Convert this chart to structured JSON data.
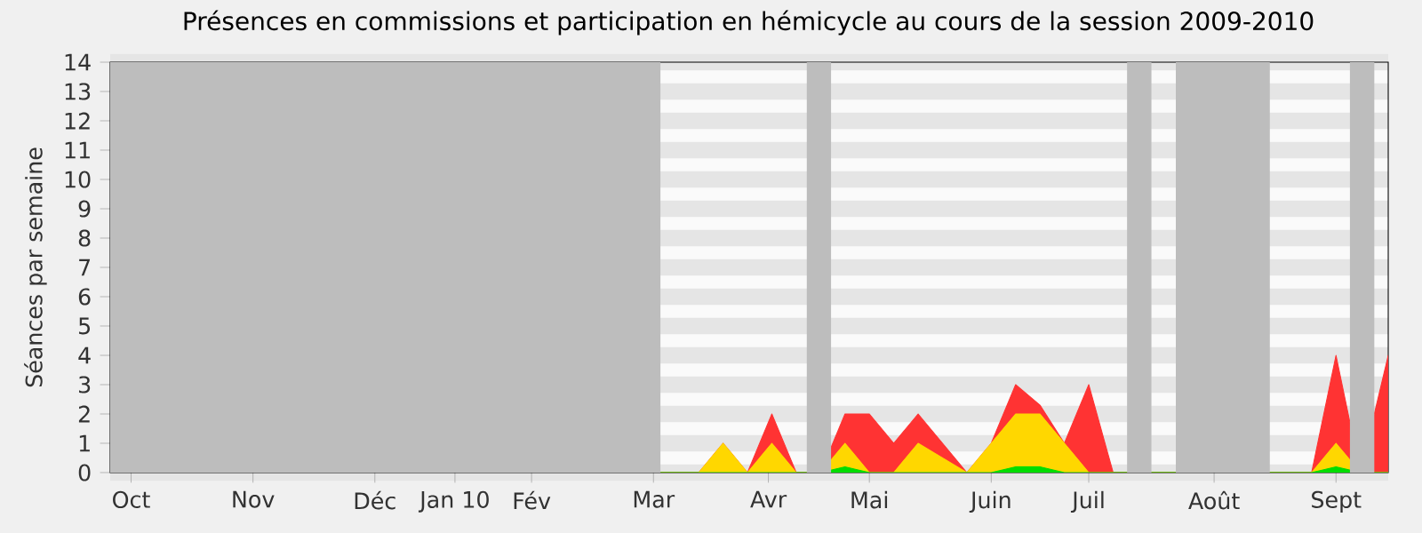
{
  "chart_data": {
    "type": "area",
    "stacked": true,
    "title": "Présences en commissions et participation en hémicycle au cours de la session 2009-2010",
    "ylabel": "Séances par semaine",
    "x": [
      "2009-09-28",
      "2010-03-15",
      "2010-03-22",
      "2010-03-29",
      "2010-04-05",
      "2010-04-12",
      "2010-04-19",
      "2010-04-26",
      "2010-05-03",
      "2010-05-10",
      "2010-05-17",
      "2010-05-24",
      "2010-05-31",
      "2010-06-07",
      "2010-06-14",
      "2010-06-21",
      "2010-06-28",
      "2010-07-05",
      "2010-07-12",
      "2010-09-07",
      "2010-09-14",
      "2010-09-21",
      "2010-09-29"
    ],
    "series": [
      {
        "color": "#00dd00",
        "values": [
          0,
          0,
          0,
          0,
          0,
          0,
          0,
          0.2,
          0,
          0,
          0,
          0,
          0,
          0,
          0.2,
          0.2,
          0,
          0,
          0,
          0,
          0.2,
          0,
          0
        ]
      },
      {
        "color": "#ffd700",
        "values": [
          0,
          0,
          1,
          0,
          1,
          0,
          0,
          0.8,
          0,
          0,
          1,
          0.5,
          0,
          1,
          1.8,
          1.8,
          1,
          0,
          0,
          0,
          0.8,
          0,
          0
        ]
      },
      {
        "color": "#ff3333",
        "values": [
          0,
          0,
          0,
          0,
          1,
          0,
          0,
          1,
          2,
          1,
          1,
          0.5,
          0,
          0,
          1,
          0.3,
          0,
          3,
          0,
          0,
          3,
          0,
          4
        ]
      }
    ],
    "xlim": [
      "2009-09-27",
      "2010-09-29"
    ],
    "ylim": [
      0,
      14
    ],
    "xticks": [
      {
        "value": "2009-10-03",
        "label": "Oct"
      },
      {
        "value": "2009-11-07",
        "label": "Nov"
      },
      {
        "value": "2009-12-12",
        "label": "Déc"
      },
      {
        "value": "2010-01-04",
        "label": "Jan 10"
      },
      {
        "value": "2010-01-26",
        "label": "Fév"
      },
      {
        "value": "2010-03-02",
        "label": "Mar"
      },
      {
        "value": "2010-04-04",
        "label": "Avr"
      },
      {
        "value": "2010-05-03",
        "label": "Mai"
      },
      {
        "value": "2010-06-07",
        "label": "Juin"
      },
      {
        "value": "2010-07-05",
        "label": "Juil"
      },
      {
        "value": "2010-08-10",
        "label": "Août"
      },
      {
        "value": "2010-09-14",
        "label": "Sept"
      }
    ],
    "yticks": [
      0,
      1,
      2,
      3,
      4,
      5,
      6,
      7,
      8,
      9,
      10,
      11,
      12,
      13,
      14
    ],
    "bands": [
      {
        "axis": "x",
        "from": "2009-09-27",
        "to": "2010-03-04",
        "color": "#bdbdbd"
      },
      {
        "axis": "x",
        "from": "2010-04-15",
        "to": "2010-04-22",
        "color": "#bdbdbd"
      },
      {
        "axis": "x",
        "from": "2010-07-16",
        "to": "2010-07-23",
        "color": "#bdbdbd"
      },
      {
        "axis": "x",
        "from": "2010-07-30",
        "to": "2010-08-26",
        "color": "#bdbdbd"
      },
      {
        "axis": "x",
        "from": "2010-09-18",
        "to": "2010-09-25",
        "color": "#bdbdbd"
      }
    ],
    "grid": "y"
  }
}
